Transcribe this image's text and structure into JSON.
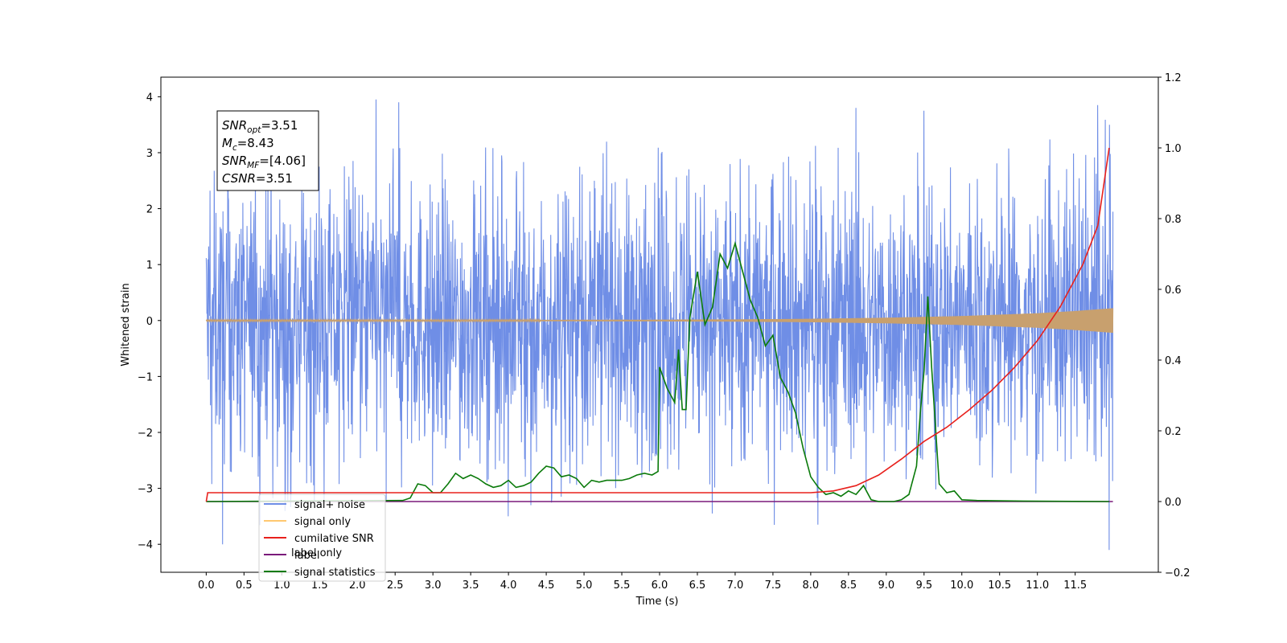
{
  "chart_data": {
    "type": "line",
    "title": "",
    "xlabel": "Time (s)",
    "ylabel": "Whitened strain",
    "xlim": [
      -0.6,
      12.6
    ],
    "ylim": [
      -4.5,
      4.35
    ],
    "y2lim": [
      -0.2,
      1.2
    ],
    "xticks": [
      "0.0",
      "0.5",
      "1.0",
      "1.5",
      "2.0",
      "2.5",
      "3.0",
      "3.5",
      "4.0",
      "4.5",
      "5.0",
      "5.5",
      "6.0",
      "6.5",
      "7.0",
      "7.5",
      "8.0",
      "8.5",
      "9.0",
      "9.5",
      "10.0",
      "10.5",
      "11.0",
      "11.5"
    ],
    "yticks": [
      "4",
      "3",
      "2",
      "1",
      "0",
      "−1",
      "−2",
      "−3",
      "−4"
    ],
    "y2ticks": [
      "1.2",
      "1.0",
      "0.8",
      "0.6",
      "0.4",
      "0.2",
      "0.0",
      "−0.2"
    ],
    "grid": false,
    "legend_position": "lower-left",
    "annotation_box": {
      "lines": [
        {
          "base": "SNR",
          "sub": "opt",
          "rest": "=3.51"
        },
        {
          "base": "M",
          "sub": "c",
          "rest": "=8.43"
        },
        {
          "base": "SNR",
          "sub": "MF",
          "rest": "=[4.06]"
        },
        {
          "base": "CSNR",
          "sub": "",
          "rest": "=3.51"
        }
      ]
    },
    "series": [
      {
        "name": "signal+ noise",
        "axis": "left",
        "color": "#6f8ee6",
        "kind": "noise_band",
        "envelope_x": [
          0,
          1,
          2,
          3,
          4,
          5,
          6,
          7,
          8,
          9,
          10,
          11,
          12
        ],
        "typical_upper": [
          2.0,
          2.0,
          2.0,
          2.0,
          2.0,
          2.0,
          2.0,
          2.0,
          2.0,
          2.0,
          2.0,
          2.1,
          2.2
        ],
        "typical_lower": [
          -2.1,
          -2.1,
          -2.1,
          -2.1,
          -2.1,
          -2.1,
          -2.1,
          -2.1,
          -2.1,
          -2.1,
          -2.1,
          -2.1,
          -2.2
        ],
        "spikes": [
          [
            0.22,
            -4.0
          ],
          [
            2.25,
            3.95
          ],
          [
            2.55,
            3.9
          ],
          [
            4.0,
            -3.5
          ],
          [
            4.3,
            -3.3
          ],
          [
            6.7,
            -3.45
          ],
          [
            8.1,
            -3.65
          ],
          [
            8.6,
            3.8
          ],
          [
            9.5,
            3.75
          ],
          [
            11.8,
            3.85
          ],
          [
            11.95,
            -4.1
          ],
          [
            11.95,
            3.5
          ]
        ]
      },
      {
        "name": "signal only",
        "axis": "left",
        "color": "#c8a06e",
        "kind": "chirp",
        "envelope_x": [
          0,
          2,
          4,
          6,
          7,
          8,
          9,
          10,
          11,
          11.5,
          12
        ],
        "envelope_amp": [
          0.01,
          0.01,
          0.01,
          0.015,
          0.02,
          0.03,
          0.05,
          0.08,
          0.13,
          0.17,
          0.22
        ]
      },
      {
        "name": "cumilative SNR",
        "axis": "right",
        "color": "#e8201c",
        "kind": "line",
        "x": [
          0.0,
          0.02,
          0.5,
          1,
          2,
          3,
          4,
          5,
          6,
          7,
          8,
          8.3,
          8.6,
          8.9,
          9.2,
          9.5,
          9.8,
          10.1,
          10.4,
          10.7,
          11.0,
          11.3,
          11.6,
          11.8,
          11.95
        ],
        "values": [
          0.0,
          0.025,
          0.025,
          0.025,
          0.025,
          0.025,
          0.025,
          0.025,
          0.025,
          0.025,
          0.025,
          0.03,
          0.045,
          0.075,
          0.12,
          0.17,
          0.21,
          0.26,
          0.315,
          0.38,
          0.455,
          0.55,
          0.67,
          0.78,
          1.0
        ]
      },
      {
        "name": "label",
        "axis": "right",
        "color": "#7a1a7a",
        "kind": "line",
        "x": [
          0,
          12
        ],
        "values": [
          0.0,
          0.0
        ]
      },
      {
        "name": "signal statistics",
        "axis": "right",
        "color": "#0a7a0a",
        "kind": "line",
        "x": [
          0.0,
          2.6,
          2.7,
          2.8,
          2.9,
          3.0,
          3.1,
          3.2,
          3.3,
          3.4,
          3.5,
          3.6,
          3.7,
          3.8,
          3.9,
          4.0,
          4.1,
          4.2,
          4.3,
          4.4,
          4.5,
          4.6,
          4.7,
          4.8,
          4.9,
          5.0,
          5.1,
          5.2,
          5.3,
          5.4,
          5.5,
          5.6,
          5.7,
          5.8,
          5.9,
          5.98,
          6.0,
          6.1,
          6.2,
          6.25,
          6.3,
          6.35,
          6.4,
          6.5,
          6.6,
          6.7,
          6.8,
          6.9,
          7.0,
          7.1,
          7.2,
          7.3,
          7.4,
          7.5,
          7.6,
          7.7,
          7.8,
          7.9,
          8.0,
          8.1,
          8.2,
          8.3,
          8.4,
          8.5,
          8.6,
          8.7,
          8.8,
          8.9,
          9.0,
          9.1,
          9.2,
          9.3,
          9.4,
          9.45,
          9.5,
          9.55,
          9.6,
          9.7,
          9.8,
          9.9,
          10.0,
          10.2,
          10.5,
          11.0,
          11.95
        ],
        "values": [
          0.0,
          0.003,
          0.01,
          0.05,
          0.045,
          0.025,
          0.025,
          0.05,
          0.08,
          0.065,
          0.075,
          0.065,
          0.05,
          0.04,
          0.045,
          0.06,
          0.04,
          0.045,
          0.055,
          0.08,
          0.1,
          0.095,
          0.07,
          0.075,
          0.065,
          0.04,
          0.06,
          0.055,
          0.06,
          0.06,
          0.06,
          0.065,
          0.075,
          0.08,
          0.075,
          0.085,
          0.38,
          0.32,
          0.28,
          0.43,
          0.26,
          0.26,
          0.52,
          0.65,
          0.5,
          0.55,
          0.7,
          0.66,
          0.73,
          0.65,
          0.57,
          0.52,
          0.44,
          0.47,
          0.35,
          0.31,
          0.25,
          0.15,
          0.07,
          0.04,
          0.02,
          0.025,
          0.015,
          0.03,
          0.02,
          0.045,
          0.005,
          0.0,
          0.0,
          0.0,
          0.005,
          0.02,
          0.1,
          0.25,
          0.37,
          0.58,
          0.38,
          0.05,
          0.025,
          0.03,
          0.005,
          0.003,
          0.002,
          0.001,
          0.0
        ]
      }
    ],
    "legend_entries": [
      {
        "label": "signal+ noise",
        "color": "#6f8ee6"
      },
      {
        "label": "signal only",
        "color": "#ffc870"
      },
      {
        "label": "cumilative SNR",
        "color": "#e8201c"
      },
      {
        "label": "label",
        "color": "#7a1a7a"
      },
      {
        "label": "signal statistics",
        "color": "#0a7a0a"
      }
    ],
    "legend_hidden_text": {
      "label": "label only",
      "color": "#bdbdbd"
    }
  }
}
